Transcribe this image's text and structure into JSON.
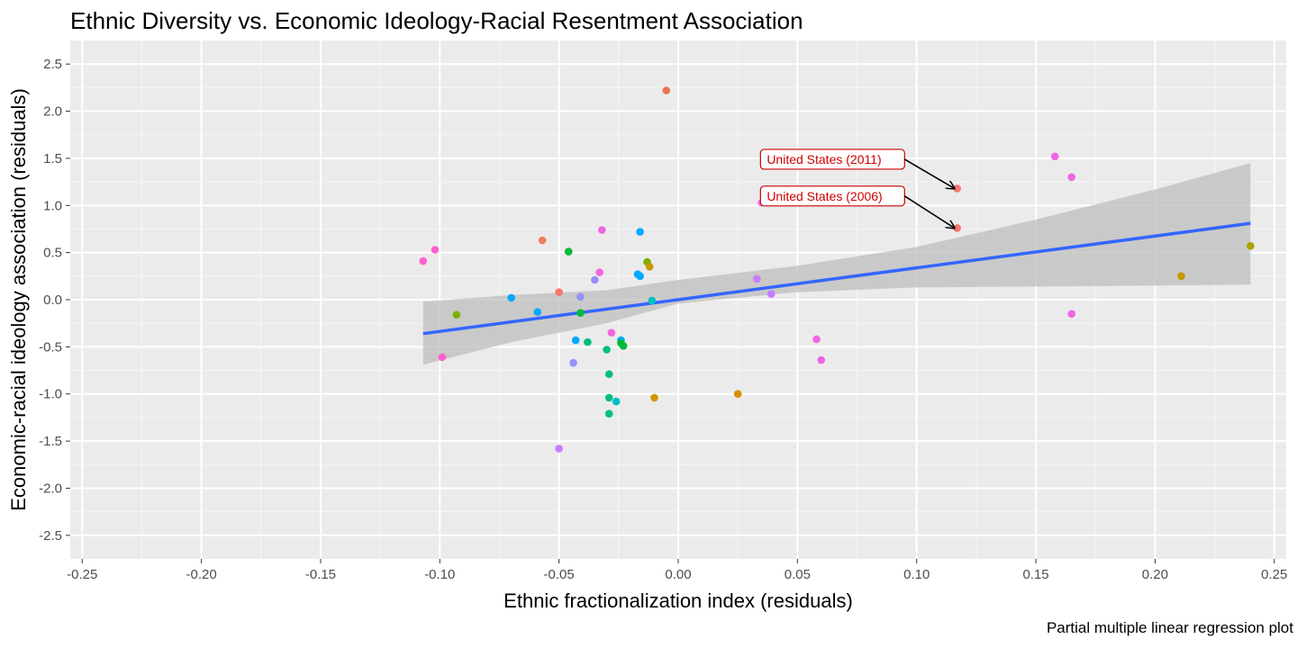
{
  "chart_data": {
    "type": "scatter",
    "title": "Ethnic Diversity vs. Economic Ideology-Racial Resentment Association",
    "xlabel": "Ethnic fractionalization index (residuals)",
    "ylabel": "Economic-racial ideology association (residuals)",
    "caption": "Partial multiple linear regression plot",
    "xlim": [
      -0.255,
      0.255
    ],
    "ylim": [
      -2.75,
      2.75
    ],
    "x_ticks": [
      -0.25,
      -0.2,
      -0.15,
      -0.1,
      -0.05,
      0.0,
      0.05,
      0.1,
      0.15,
      0.2,
      0.25
    ],
    "x_tick_labels": [
      "-0.25",
      "-0.20",
      "-0.15",
      "-0.10",
      "-0.05",
      "0.00",
      "0.05",
      "0.10",
      "0.15",
      "0.20",
      "0.25"
    ],
    "y_ticks": [
      -2.5,
      -2.0,
      -1.5,
      -1.0,
      -0.5,
      0.0,
      0.5,
      1.0,
      1.5,
      2.0,
      2.5
    ],
    "y_tick_labels": [
      "-2.5",
      "-2.0",
      "-1.5",
      "-1.0",
      "-0.5",
      "0.0",
      "0.5",
      "1.0",
      "1.5",
      "2.0",
      "2.5"
    ],
    "grid": true,
    "legend": "none",
    "colors": {
      "panel": "#ebebeb",
      "grid_major": "#ffffff",
      "grid_minor": "#f5f5f5",
      "fit_line": "#3366ff",
      "confidence_band": "#bdbdbd",
      "annotation": "#cc0000"
    },
    "points": [
      {
        "x": -0.005,
        "y": 2.22,
        "color": "#E8734F"
      },
      {
        "x": 0.158,
        "y": 1.52,
        "color": "#F066E0"
      },
      {
        "x": 0.165,
        "y": 1.3,
        "color": "#F066E0"
      },
      {
        "x": 0.117,
        "y": 1.18,
        "color": "#F8766D"
      },
      {
        "x": 0.035,
        "y": 1.03,
        "color": "#E76BF3"
      },
      {
        "x": 0.117,
        "y": 0.76,
        "color": "#F8766D"
      },
      {
        "x": -0.032,
        "y": 0.74,
        "color": "#F066E0"
      },
      {
        "x": -0.016,
        "y": 0.72,
        "color": "#00A9FF"
      },
      {
        "x": -0.057,
        "y": 0.63,
        "color": "#F07A62"
      },
      {
        "x": -0.102,
        "y": 0.53,
        "color": "#FD61D1"
      },
      {
        "x": -0.046,
        "y": 0.51,
        "color": "#00BA38"
      },
      {
        "x": -0.107,
        "y": 0.41,
        "color": "#FD61D1"
      },
      {
        "x": -0.013,
        "y": 0.4,
        "color": "#7CAE00"
      },
      {
        "x": -0.012,
        "y": 0.35,
        "color": "#CD9600"
      },
      {
        "x": -0.033,
        "y": 0.29,
        "color": "#F066E0"
      },
      {
        "x": -0.017,
        "y": 0.27,
        "color": "#00A9FF"
      },
      {
        "x": -0.016,
        "y": 0.25,
        "color": "#00A9FF"
      },
      {
        "x": 0.211,
        "y": 0.25,
        "color": "#C49A00"
      },
      {
        "x": 0.033,
        "y": 0.22,
        "color": "#C77CFF"
      },
      {
        "x": -0.035,
        "y": 0.21,
        "color": "#9590FF"
      },
      {
        "x": 0.24,
        "y": 0.57,
        "color": "#ABA300"
      },
      {
        "x": -0.05,
        "y": 0.08,
        "color": "#F8766D"
      },
      {
        "x": 0.039,
        "y": 0.06,
        "color": "#C77CFF"
      },
      {
        "x": -0.041,
        "y": 0.03,
        "color": "#9590FF"
      },
      {
        "x": -0.07,
        "y": 0.02,
        "color": "#00A9FF"
      },
      {
        "x": -0.011,
        "y": -0.01,
        "color": "#00BFC4"
      },
      {
        "x": -0.059,
        "y": -0.13,
        "color": "#00A9FF"
      },
      {
        "x": -0.041,
        "y": -0.14,
        "color": "#00BA38"
      },
      {
        "x": 0.165,
        "y": -0.15,
        "color": "#F066E0"
      },
      {
        "x": -0.093,
        "y": -0.16,
        "color": "#7CAE00"
      },
      {
        "x": -0.028,
        "y": -0.35,
        "color": "#F066E0"
      },
      {
        "x": -0.043,
        "y": -0.43,
        "color": "#00A9FF"
      },
      {
        "x": -0.024,
        "y": -0.43,
        "color": "#00A9FF"
      },
      {
        "x": 0.058,
        "y": -0.42,
        "color": "#F066E0"
      },
      {
        "x": -0.038,
        "y": -0.45,
        "color": "#00BF7D"
      },
      {
        "x": -0.024,
        "y": -0.46,
        "color": "#00BA38"
      },
      {
        "x": -0.023,
        "y": -0.49,
        "color": "#00BA38"
      },
      {
        "x": -0.03,
        "y": -0.53,
        "color": "#00BF7D"
      },
      {
        "x": -0.099,
        "y": -0.61,
        "color": "#FD61D1"
      },
      {
        "x": 0.06,
        "y": -0.64,
        "color": "#F066E0"
      },
      {
        "x": -0.044,
        "y": -0.67,
        "color": "#9590FF"
      },
      {
        "x": -0.029,
        "y": -0.79,
        "color": "#00BF7D"
      },
      {
        "x": 0.025,
        "y": -1.0,
        "color": "#D89000"
      },
      {
        "x": -0.029,
        "y": -1.04,
        "color": "#00BF7D"
      },
      {
        "x": -0.01,
        "y": -1.04,
        "color": "#CD9600"
      },
      {
        "x": -0.026,
        "y": -1.08,
        "color": "#00BFC4"
      },
      {
        "x": -0.029,
        "y": -1.21,
        "color": "#00BF7D"
      },
      {
        "x": -0.05,
        "y": -1.58,
        "color": "#C77CFF"
      }
    ],
    "fit_line": {
      "x": [
        -0.107,
        0.24
      ],
      "y": [
        -0.36,
        0.81
      ]
    },
    "confidence_band": {
      "x": [
        -0.107,
        -0.07,
        -0.03,
        0.0,
        0.05,
        0.1,
        0.15,
        0.2,
        0.24
      ],
      "upper": [
        -0.02,
        0.05,
        0.1,
        0.21,
        0.36,
        0.56,
        0.85,
        1.17,
        1.45
      ],
      "lower": [
        -0.69,
        -0.45,
        -0.25,
        -0.04,
        0.08,
        0.13,
        0.14,
        0.15,
        0.16
      ]
    },
    "annotations": [
      {
        "label": "United States (2011)",
        "label_x": 0.0345,
        "label_y": 1.49,
        "target_x": 0.117,
        "target_y": 1.18
      },
      {
        "label": "United States (2006)",
        "label_x": 0.0345,
        "label_y": 1.1,
        "target_x": 0.117,
        "target_y": 0.76
      }
    ]
  }
}
